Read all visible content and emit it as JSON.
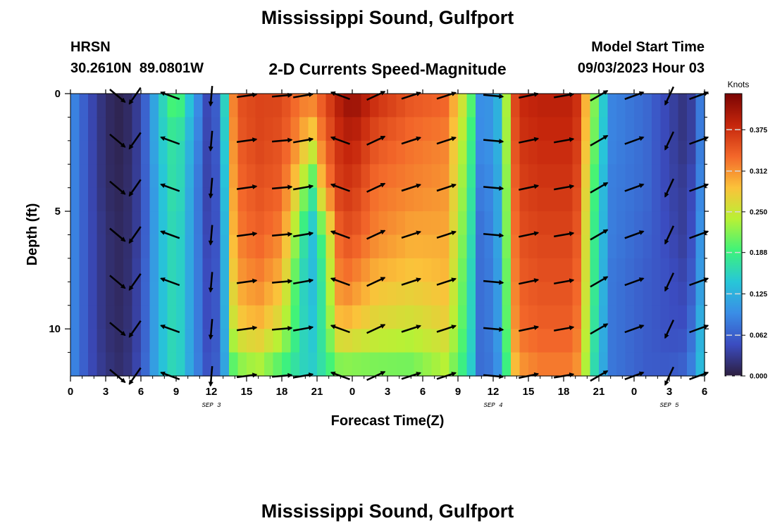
{
  "page": {
    "title": "Mississippi Sound, Gulfport",
    "station_code": "HRSN",
    "station_coords": "30.2610N  89.0801W",
    "product": "2-D Currents Speed-Magnitude",
    "model_start_label": "Model Start Time",
    "model_start_value": "09/03/2023 Hour 03",
    "footer_title": "Mississippi Sound, Gulfport"
  },
  "chart_data": {
    "type": "heatmap",
    "title": "2-D Currents Speed-Magnitude",
    "xlabel": "Forecast Time(Z)",
    "ylabel": "Depth (ft)",
    "x_tick_labels": [
      "0",
      "3",
      "6",
      "9",
      "12",
      "15",
      "18",
      "21",
      "0",
      "3",
      "6",
      "9",
      "12",
      "15",
      "18",
      "21",
      "0",
      "3",
      "6"
    ],
    "x_hours_range": [
      0,
      54
    ],
    "date_labels": [
      {
        "text": "SEP 3",
        "hour": 12
      },
      {
        "text": "SEP 4",
        "hour": 36
      },
      {
        "text": "SEP 5",
        "hour": 51
      }
    ],
    "y_tick_labels": [
      "0",
      "5",
      "10"
    ],
    "y_tick_values": [
      0,
      5,
      10
    ],
    "ylim": [
      0,
      12
    ],
    "y_inverted": true,
    "colorbar": {
      "label": "Knots",
      "tick_labels": [
        "0.000",
        "0.062",
        "0.125",
        "0.188",
        "0.250",
        "0.312",
        "0.375"
      ],
      "ticks": [
        0.0,
        0.062,
        0.125,
        0.188,
        0.25,
        0.312,
        0.375
      ],
      "range": [
        0,
        0.43
      ],
      "colors": [
        "#2d1e3f",
        "#3b4cc0",
        "#3a8de6",
        "#27c6d8",
        "#3ef37a",
        "#b8f135",
        "#fbc23a",
        "#f3672a",
        "#c5260c",
        "#7a0403"
      ]
    },
    "vector_depths_ft": [
      0,
      2,
      4,
      6,
      8,
      10,
      12
    ],
    "vector_hours": [
      4,
      5.5,
      8.5,
      12,
      15,
      18,
      19.8,
      23,
      26,
      29,
      32,
      36,
      39,
      42,
      45,
      48,
      51,
      53.5
    ],
    "speed_columns": [
      {
        "hour": 0,
        "speed": [
          0.1,
          0.1,
          0.1,
          0.1,
          0.1,
          0.1,
          0.1
        ]
      },
      {
        "hour": 1.5,
        "speed": [
          0.05,
          0.05,
          0.05,
          0.05,
          0.05,
          0.05,
          0.05
        ]
      },
      {
        "hour": 3,
        "speed": [
          0.015,
          0.015,
          0.015,
          0.02,
          0.02,
          0.02,
          0.025
        ]
      },
      {
        "hour": 4.5,
        "speed": [
          0.005,
          0.005,
          0.008,
          0.01,
          0.01,
          0.012,
          0.015
        ]
      },
      {
        "hour": 6,
        "speed": [
          0.04,
          0.04,
          0.04,
          0.04,
          0.045,
          0.045,
          0.05
        ]
      },
      {
        "hour": 7.5,
        "speed": [
          0.14,
          0.14,
          0.13,
          0.13,
          0.13,
          0.13,
          0.13
        ]
      },
      {
        "hour": 9,
        "speed": [
          0.22,
          0.18,
          0.18,
          0.17,
          0.17,
          0.17,
          0.17
        ]
      },
      {
        "hour": 10.5,
        "speed": [
          0.12,
          0.11,
          0.1,
          0.1,
          0.1,
          0.1,
          0.1
        ]
      },
      {
        "hour": 12,
        "speed": [
          0.02,
          0.02,
          0.02,
          0.025,
          0.03,
          0.03,
          0.04
        ]
      },
      {
        "hour": 13,
        "speed": [
          0.13,
          0.12,
          0.11,
          0.1,
          0.1,
          0.1,
          0.1
        ]
      },
      {
        "hour": 14,
        "speed": [
          0.35,
          0.34,
          0.33,
          0.32,
          0.3,
          0.27,
          0.2
        ]
      },
      {
        "hour": 16,
        "speed": [
          0.36,
          0.36,
          0.35,
          0.34,
          0.32,
          0.29,
          0.22
        ]
      },
      {
        "hour": 18,
        "speed": [
          0.36,
          0.35,
          0.34,
          0.32,
          0.29,
          0.25,
          0.18
        ]
      },
      {
        "hour": 19.5,
        "speed": [
          0.33,
          0.31,
          0.26,
          0.2,
          0.17,
          0.17,
          0.16
        ]
      },
      {
        "hour": 20.5,
        "speed": [
          0.33,
          0.26,
          0.17,
          0.13,
          0.13,
          0.14,
          0.15
        ]
      },
      {
        "hour": 21.5,
        "speed": [
          0.35,
          0.33,
          0.3,
          0.2,
          0.18,
          0.18,
          0.17
        ]
      },
      {
        "hour": 23,
        "speed": [
          0.4,
          0.38,
          0.37,
          0.35,
          0.33,
          0.29,
          0.2
        ]
      },
      {
        "hour": 24,
        "speed": [
          0.42,
          0.39,
          0.37,
          0.35,
          0.32,
          0.28,
          0.2
        ]
      },
      {
        "hour": 26,
        "speed": [
          0.38,
          0.35,
          0.33,
          0.32,
          0.29,
          0.26,
          0.2
        ]
      },
      {
        "hour": 29,
        "speed": [
          0.35,
          0.33,
          0.32,
          0.3,
          0.28,
          0.25,
          0.2
        ]
      },
      {
        "hour": 32,
        "speed": [
          0.34,
          0.32,
          0.31,
          0.3,
          0.29,
          0.27,
          0.23
        ]
      },
      {
        "hour": 34,
        "speed": [
          0.22,
          0.2,
          0.19,
          0.18,
          0.17,
          0.17,
          0.16
        ]
      },
      {
        "hour": 35,
        "speed": [
          0.08,
          0.08,
          0.07,
          0.06,
          0.06,
          0.06,
          0.06
        ]
      },
      {
        "hour": 36.5,
        "speed": [
          0.13,
          0.13,
          0.12,
          0.12,
          0.11,
          0.11,
          0.1
        ]
      },
      {
        "hour": 38,
        "speed": [
          0.38,
          0.37,
          0.36,
          0.35,
          0.34,
          0.33,
          0.3
        ]
      },
      {
        "hour": 40,
        "speed": [
          0.39,
          0.38,
          0.37,
          0.36,
          0.35,
          0.34,
          0.32
        ]
      },
      {
        "hour": 43,
        "speed": [
          0.39,
          0.38,
          0.37,
          0.36,
          0.35,
          0.34,
          0.32
        ]
      },
      {
        "hour": 44.5,
        "speed": [
          0.23,
          0.22,
          0.2,
          0.19,
          0.19,
          0.18,
          0.17
        ]
      },
      {
        "hour": 46,
        "speed": [
          0.09,
          0.09,
          0.085,
          0.085,
          0.08,
          0.08,
          0.08
        ]
      },
      {
        "hour": 49,
        "speed": [
          0.07,
          0.07,
          0.07,
          0.065,
          0.06,
          0.06,
          0.06
        ]
      },
      {
        "hour": 51,
        "speed": [
          0.04,
          0.04,
          0.04,
          0.045,
          0.05,
          0.05,
          0.06
        ]
      },
      {
        "hour": 52.5,
        "speed": [
          0.02,
          0.02,
          0.03,
          0.03,
          0.04,
          0.05,
          0.07
        ]
      },
      {
        "hour": 53.5,
        "speed": [
          0.06,
          0.06,
          0.07,
          0.08,
          0.09,
          0.11,
          0.12
        ]
      },
      {
        "hour": 54,
        "speed": [
          0.15,
          0.15,
          0.15,
          0.16,
          0.16,
          0.17,
          0.18
        ]
      }
    ]
  }
}
